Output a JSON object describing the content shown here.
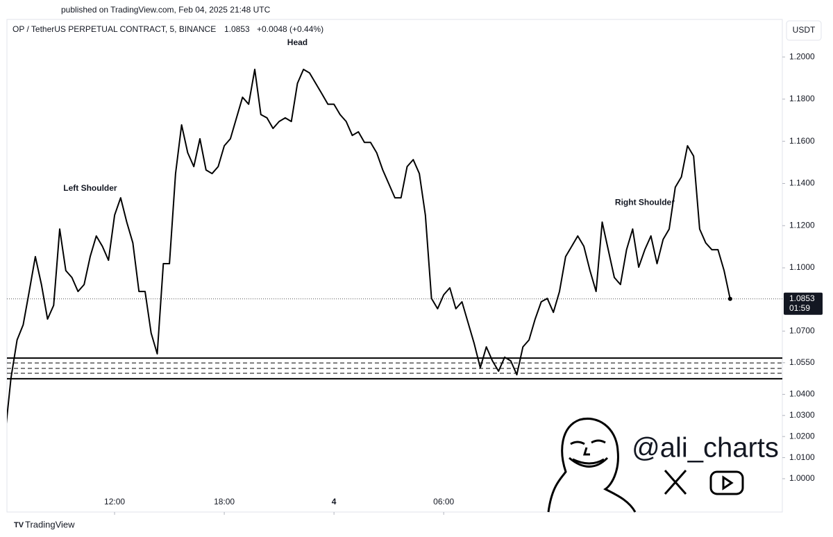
{
  "chart_data": {
    "type": "line",
    "published": "published on TradingView.com, Feb 04, 2025 21:48 UTC",
    "title": "OP / TetherUS PERPETUAL CONTRACT, 5, BINANCE",
    "last_price": "1.0853",
    "change": "+0.0048 (+0.44%)",
    "currency": "USDT",
    "countdown": "01:59",
    "brand": "TradingView",
    "watermark": "@ali_charts",
    "annotations": [
      {
        "text": "Left Shoulder",
        "index": 14
      },
      {
        "text": "Head",
        "index": 48
      },
      {
        "text": "Right Shoulder",
        "index": 105
      }
    ],
    "series": [
      {
        "name": "OP / TetherUS",
        "color": "#000000",
        "values": [
          1.0197,
          1.0477,
          1.0658,
          1.073,
          1.0888,
          1.1053,
          1.0921,
          1.0757,
          1.0822,
          1.1184,
          1.0987,
          1.0954,
          1.0888,
          1.0921,
          1.1053,
          1.1151,
          1.1102,
          1.1036,
          1.125,
          1.1332,
          1.1217,
          1.1118,
          1.0888,
          1.0888,
          1.0691,
          1.0592,
          1.102,
          1.102,
          1.1447,
          1.1678,
          1.1546,
          1.148,
          1.1612,
          1.1464,
          1.1447,
          1.148,
          1.1579,
          1.1612,
          1.1711,
          1.1809,
          1.1776,
          1.1941,
          1.1727,
          1.1711,
          1.1661,
          1.1694,
          1.1711,
          1.1694,
          1.1875,
          1.1941,
          1.1924,
          1.1875,
          1.1826,
          1.1776,
          1.1776,
          1.1727,
          1.1694,
          1.1628,
          1.1645,
          1.1595,
          1.1595,
          1.1546,
          1.1464,
          1.1398,
          1.1332,
          1.1332,
          1.148,
          1.1513,
          1.1447,
          1.125,
          1.0855,
          1.0806,
          1.0872,
          1.0905,
          1.0806,
          1.0839,
          1.074,
          1.0641,
          1.0526,
          1.0625,
          1.0559,
          1.051,
          1.0576,
          1.0559,
          1.0493,
          1.0625,
          1.0658,
          1.0757,
          1.0839,
          1.0855,
          1.0789,
          1.0888,
          1.1053,
          1.1102,
          1.1151,
          1.1102,
          1.0987,
          1.0888,
          1.1217,
          1.1086,
          1.0954,
          1.0921,
          1.1086,
          1.1184,
          1.1003,
          1.1086,
          1.1151,
          1.102,
          1.1135,
          1.1184,
          1.1382,
          1.1431,
          1.1579,
          1.153,
          1.1184,
          1.1118,
          1.1086,
          1.1086,
          1.0987,
          1.0853
        ]
      }
    ],
    "price_line": 1.0853,
    "levels": [
      {
        "value": 1.0572,
        "style": "solid"
      },
      {
        "value": 1.0549,
        "style": "dashed"
      },
      {
        "value": 1.0523,
        "style": "dashed"
      },
      {
        "value": 1.05,
        "style": "dashed"
      },
      {
        "value": 1.0474,
        "style": "solid"
      }
    ],
    "xlim": [
      0.34,
      127.56
    ],
    "xticks": [
      {
        "value": 18,
        "label": "12:00"
      },
      {
        "value": 36,
        "label": "18:00"
      },
      {
        "value": 54,
        "label": "4"
      },
      {
        "value": 72,
        "label": "06:00"
      }
    ],
    "ylim": [
      0.9842,
      1.2178
    ],
    "yticks": [
      {
        "value": 1.2,
        "label": "1.2000"
      },
      {
        "value": 1.18,
        "label": "1.1800"
      },
      {
        "value": 1.16,
        "label": "1.1600"
      },
      {
        "value": 1.14,
        "label": "1.1400"
      },
      {
        "value": 1.12,
        "label": "1.1200"
      },
      {
        "value": 1.1,
        "label": "1.1000"
      },
      {
        "value": 1.07,
        "label": "1.0700"
      },
      {
        "value": 1.055,
        "label": "1.0550"
      },
      {
        "value": 1.04,
        "label": "1.0400"
      },
      {
        "value": 1.03,
        "label": "1.0300"
      },
      {
        "value": 1.02,
        "label": "1.0200"
      },
      {
        "value": 1.01,
        "label": "1.0100"
      },
      {
        "value": 1,
        "label": "1.0000"
      }
    ],
    "grid": false
  }
}
